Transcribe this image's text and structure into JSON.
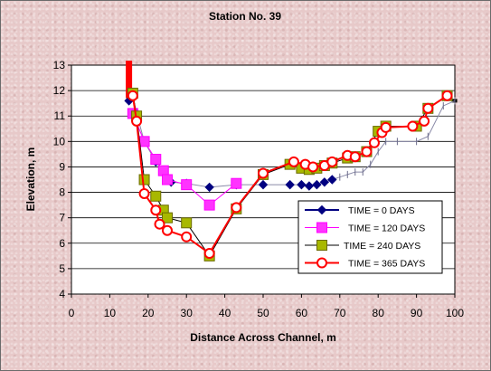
{
  "chart_data": {
    "type": "line",
    "title": "Station No. 39",
    "xlabel": "Distance Across Channel, m",
    "ylabel": "Elevation, m",
    "xlim": [
      0,
      100
    ],
    "ylim": [
      4,
      13
    ],
    "xticks": [
      0,
      10,
      20,
      30,
      40,
      50,
      60,
      70,
      80,
      90,
      100
    ],
    "yticks": [
      4,
      5,
      6,
      7,
      8,
      9,
      10,
      11,
      12,
      13
    ],
    "grid": true,
    "legend": "right",
    "series": [
      {
        "name": "TIME = 0 DAYS",
        "color": "#000080",
        "marker": "diamond",
        "x": [
          15,
          16,
          17,
          19,
          22,
          24,
          26,
          30,
          36,
          43,
          50,
          57,
          60,
          62,
          64,
          66,
          68,
          70,
          72,
          74,
          76,
          78,
          80,
          82,
          85,
          90,
          93,
          97,
          100
        ],
        "y": [
          11.6,
          11.8,
          11.1,
          10.0,
          9.2,
          8.8,
          8.4,
          8.35,
          8.2,
          8.3,
          8.3,
          8.3,
          8.3,
          8.25,
          8.3,
          8.4,
          8.5,
          8.6,
          8.7,
          8.8,
          8.8,
          9.1,
          9.6,
          10.0,
          10.0,
          10.0,
          10.2,
          11.4,
          11.6
        ]
      },
      {
        "name": "TIME = 120 DAYS",
        "color": "#ff00ff",
        "marker": "square",
        "x": [
          16,
          19,
          22,
          24,
          25,
          30,
          36,
          43
        ],
        "y": [
          11.1,
          10.0,
          9.3,
          8.85,
          8.5,
          8.3,
          7.5,
          8.35
        ]
      },
      {
        "name": "TIME = 240 DAYS",
        "color": "#a0a000",
        "marker": "square",
        "x": [
          16,
          17,
          19,
          22,
          24,
          25,
          30,
          36,
          43,
          50,
          57,
          60,
          62,
          64,
          66,
          68,
          72,
          74,
          77,
          80,
          82,
          90,
          93,
          98
        ],
        "y": [
          11.9,
          11.0,
          8.5,
          7.85,
          7.3,
          7.0,
          6.8,
          5.5,
          7.35,
          8.7,
          9.1,
          8.95,
          8.9,
          8.95,
          9.05,
          9.15,
          9.35,
          9.4,
          9.6,
          10.4,
          10.6,
          10.6,
          11.3,
          11.8
        ]
      },
      {
        "name": "TIME = 365 DAYS",
        "color": "#ff0000",
        "marker": "circle",
        "x": [
          16,
          17,
          19,
          22,
          23,
          25,
          30,
          36,
          43,
          50,
          58,
          61,
          63,
          66,
          68,
          72,
          74,
          77,
          79,
          81,
          82,
          89,
          92,
          93,
          98
        ],
        "y": [
          11.8,
          10.8,
          7.95,
          7.3,
          6.75,
          6.5,
          6.25,
          5.6,
          7.4,
          8.75,
          9.2,
          9.1,
          9.0,
          9.05,
          9.2,
          9.45,
          9.4,
          9.6,
          9.95,
          10.35,
          10.55,
          10.6,
          10.8,
          11.3,
          11.8
        ]
      }
    ]
  }
}
